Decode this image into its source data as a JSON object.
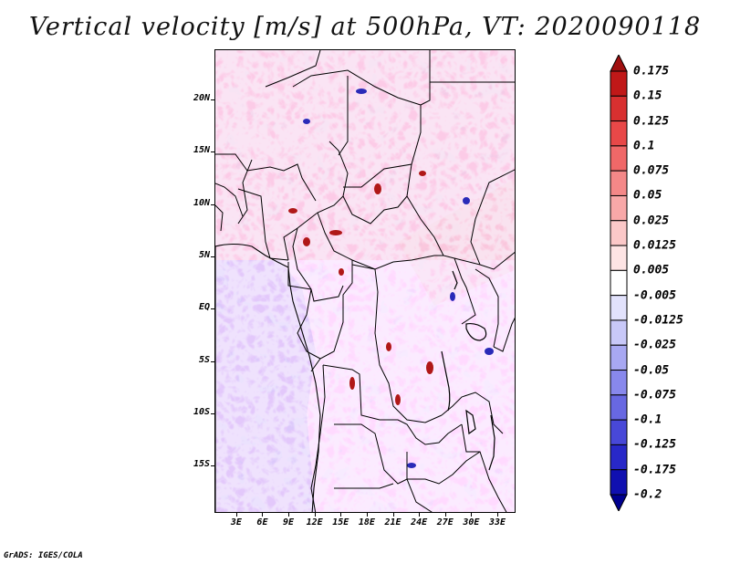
{
  "title": "Vertical velocity [m/s] at 500hPa, VT: 2020090118",
  "credit": "GrADS: IGES/COLA",
  "map": {
    "lat_labels": [
      "20N",
      "15N",
      "10N",
      "5N",
      "EQ",
      "5S",
      "10S",
      "15S"
    ],
    "lon_labels": [
      "3E",
      "6E",
      "9E",
      "12E",
      "15E",
      "18E",
      "21E",
      "24E",
      "27E",
      "30E",
      "33E"
    ],
    "lat_values": [
      20,
      15,
      10,
      5,
      0,
      -5,
      -10,
      -15
    ],
    "lon_values": [
      3,
      6,
      9,
      12,
      15,
      18,
      21,
      24,
      27,
      30,
      33
    ],
    "lat_range": [
      -19.5,
      24.8
    ],
    "lon_range": [
      0.5,
      35.1
    ]
  },
  "colorbar": {
    "levels": [
      "0.175",
      "0.15",
      "0.125",
      "0.1",
      "0.075",
      "0.05",
      "0.025",
      "0.0125",
      "0.005",
      "-0.005",
      "-0.0125",
      "-0.025",
      "-0.05",
      "-0.075",
      "-0.1",
      "-0.125",
      "-0.175",
      "-0.2"
    ],
    "colors": [
      "#a01010",
      "#c01818",
      "#d83030",
      "#e84848",
      "#f06868",
      "#f48888",
      "#f8a8a8",
      "#fbc8c8",
      "#fde4e4",
      "#ffffff",
      "#e2e2fc",
      "#c8c8f8",
      "#a8a8f2",
      "#8888ec",
      "#6868e2",
      "#4848d8",
      "#2828c8",
      "#1010b0",
      "#000090"
    ]
  }
}
